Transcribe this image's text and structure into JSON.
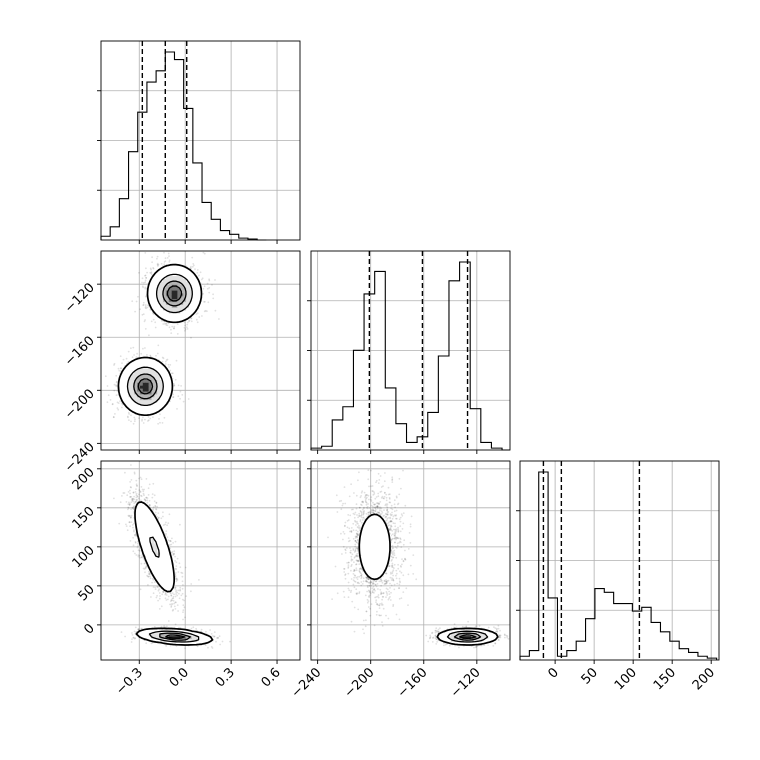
{
  "chart_data": {
    "type": "corner",
    "title": "",
    "params": [
      {
        "id": "p0",
        "range": [
          -0.55,
          0.75
        ],
        "ticks": [
          -0.3,
          0.0,
          0.3,
          0.6
        ],
        "tick_labels": [
          "−0.3",
          "0.0",
          "0.3",
          "0.6"
        ],
        "quantiles": [
          -0.28,
          -0.13,
          0.01
        ],
        "histogram": {
          "bin_edges": [
            -0.55,
            -0.49,
            -0.43,
            -0.37,
            -0.31,
            -0.25,
            -0.19,
            -0.13,
            -0.07,
            -0.01,
            0.05,
            0.11,
            0.17,
            0.23,
            0.29,
            0.35,
            0.41,
            0.47,
            0.53
          ],
          "counts": [
            0.02,
            0.07,
            0.22,
            0.47,
            0.68,
            0.84,
            0.9,
            1.0,
            0.96,
            0.7,
            0.41,
            0.2,
            0.11,
            0.05,
            0.03,
            0.01,
            0.005,
            0.0
          ]
        }
      },
      {
        "id": "p1",
        "range": [
          -245,
          -95
        ],
        "ticks": [
          -240,
          -200,
          -160,
          -120
        ],
        "tick_labels": [
          "−240",
          "−200",
          "−160",
          "−120"
        ],
        "quantiles": [
          -201,
          -161,
          -127
        ],
        "histogram": {
          "bin_edges": [
            -245,
            -237,
            -229,
            -221,
            -213,
            -205,
            -197,
            -189,
            -181,
            -173,
            -165,
            -157,
            -149,
            -141,
            -133,
            -125,
            -117,
            -109,
            -101,
            -95
          ],
          "counts": [
            0.01,
            0.02,
            0.16,
            0.23,
            0.53,
            0.83,
            0.95,
            0.33,
            0.14,
            0.04,
            0.07,
            0.2,
            0.5,
            0.9,
            1.0,
            0.22,
            0.04,
            0.01,
            0.0
          ]
        }
      },
      {
        "id": "p2",
        "range": [
          -45,
          210
        ],
        "ticks": [
          0,
          50,
          100,
          150,
          200
        ],
        "tick_labels": [
          "0",
          "50",
          "100",
          "150",
          "200"
        ],
        "quantiles": [
          -15,
          8,
          108
        ],
        "histogram": {
          "bin_edges": [
            -45,
            -33,
            -21,
            -9,
            3,
            15,
            27,
            39,
            51,
            63,
            75,
            87,
            99,
            111,
            123,
            135,
            147,
            159,
            171,
            183,
            195,
            207
          ],
          "counts": [
            0.02,
            0.05,
            1.0,
            0.33,
            0.02,
            0.05,
            0.1,
            0.22,
            0.38,
            0.36,
            0.3,
            0.3,
            0.26,
            0.28,
            0.2,
            0.15,
            0.1,
            0.06,
            0.04,
            0.02,
            0.01
          ]
        }
      }
    ],
    "pairs": [
      {
        "x": "p0",
        "y": "p1",
        "modes": [
          {
            "mean": [
              -0.07,
              -127
            ],
            "std": [
              0.085,
              10.5
            ],
            "rho": 0.0,
            "weight": 0.5
          },
          {
            "mean": [
              -0.26,
              -197
            ],
            "std": [
              0.085,
              10.5
            ],
            "rho": 0.0,
            "weight": 0.5
          }
        ]
      },
      {
        "x": "p0",
        "y": "p2",
        "modes": [
          {
            "mean": [
              -0.2,
              100
            ],
            "std": [
              0.08,
              36
            ],
            "rho": -0.72,
            "weight": 0.6
          },
          {
            "mean": [
              -0.07,
              -15
            ],
            "std": [
              0.12,
              5
            ],
            "rho": -0.35,
            "weight": 0.4
          }
        ]
      },
      {
        "x": "p1",
        "y": "p2",
        "modes": [
          {
            "mean": [
              -197,
              100
            ],
            "std": [
              10,
              36
            ],
            "rho": 0.0,
            "weight": 0.6
          },
          {
            "mean": [
              -127,
              -15
            ],
            "std": [
              11,
              5
            ],
            "rho": 0.0,
            "weight": 0.4
          }
        ]
      }
    ],
    "contour_levels": [
      0.118,
      0.393,
      0.675,
      0.864
    ],
    "grid": true,
    "legend": "none"
  }
}
